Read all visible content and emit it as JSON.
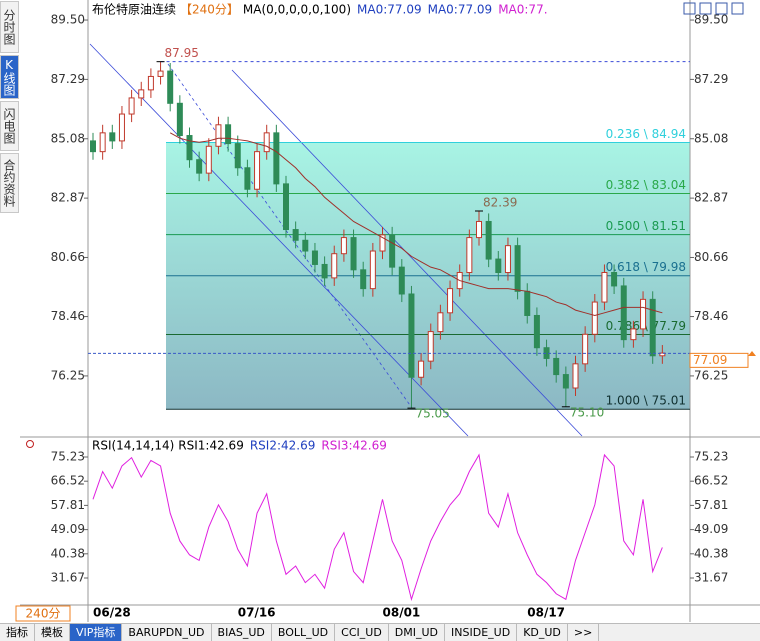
{
  "sidebar": [
    "分时图",
    "K线图",
    "闪电图",
    "合约资料"
  ],
  "toolbar": {
    "period": "240分",
    "tabs": [
      "指标",
      "模板",
      "VIP指标",
      "BARUPDN_UD",
      "BIAS_UD",
      "BOLL_UD",
      "CCI_UD",
      "DMI_UD",
      "INSIDE_UD",
      "KD_UD",
      ">>"
    ]
  },
  "chart_data": [
    {
      "type": "candlestick",
      "title": "布伦特原油连续",
      "period": "【240分】",
      "indicators": [
        {
          "text": "MA(0,0,0,0,0,100)",
          "color": "#000000"
        },
        {
          "text": "MA0:77.09",
          "color": "#1f3fbf"
        },
        {
          "text": "MA0:77.09",
          "color": "#1f3fbf"
        },
        {
          "text": "MA0:77.",
          "color": "#d020d0"
        }
      ],
      "categories": [
        "06/28",
        null,
        null,
        null,
        null,
        null,
        null,
        null,
        null,
        null,
        null,
        null,
        null,
        null,
        null,
        "07/16",
        null,
        null,
        null,
        null,
        null,
        null,
        null,
        null,
        null,
        null,
        null,
        null,
        null,
        null,
        "08/01",
        null,
        null,
        null,
        null,
        null,
        null,
        null,
        null,
        null,
        null,
        null,
        null,
        null,
        null,
        "08/17",
        null,
        null,
        null,
        null,
        null,
        null,
        null,
        null,
        null,
        null,
        null,
        null,
        null,
        null
      ],
      "open": [
        85.0,
        84.6,
        85.3,
        85.0,
        86.0,
        86.6,
        86.9,
        87.4,
        87.6,
        86.4,
        85.2,
        84.3,
        83.8,
        84.8,
        85.6,
        84.9,
        84.0,
        83.2,
        84.6,
        85.3,
        83.4,
        81.7,
        81.3,
        80.9,
        80.4,
        79.9,
        80.8,
        81.4,
        80.2,
        79.5,
        80.9,
        81.5,
        80.3,
        79.3,
        76.2,
        76.8,
        77.9,
        78.6,
        79.5,
        80.1,
        81.4,
        82.0,
        80.6,
        80.1,
        81.1,
        79.4,
        78.5,
        77.3,
        76.9,
        76.3,
        75.8,
        76.7,
        77.8,
        79.0,
        80.1,
        79.6,
        77.6,
        78.0,
        79.1,
        77.0
      ],
      "high": [
        85.3,
        85.6,
        85.6,
        86.3,
        86.9,
        87.2,
        87.7,
        87.95,
        87.9,
        86.7,
        85.5,
        84.6,
        85.1,
        85.9,
        85.9,
        85.2,
        84.3,
        84.9,
        85.6,
        85.6,
        83.7,
        82.0,
        81.6,
        81.2,
        80.7,
        81.1,
        81.7,
        81.7,
        80.5,
        81.2,
        81.8,
        81.8,
        80.6,
        79.6,
        77.1,
        78.2,
        78.9,
        79.8,
        80.4,
        81.7,
        82.39,
        82.3,
        80.9,
        81.4,
        81.4,
        79.7,
        78.8,
        77.6,
        77.2,
        76.6,
        77.0,
        78.1,
        79.3,
        80.4,
        80.4,
        79.9,
        78.3,
        79.4,
        79.4,
        77.4
      ],
      "low": [
        84.3,
        84.3,
        84.7,
        84.7,
        85.7,
        86.3,
        86.6,
        87.1,
        86.1,
        84.9,
        84.0,
        83.5,
        83.5,
        84.5,
        84.6,
        83.7,
        82.9,
        82.9,
        84.3,
        83.1,
        81.4,
        81.0,
        80.6,
        80.1,
        79.6,
        79.6,
        80.5,
        79.9,
        79.2,
        79.2,
        80.6,
        80.0,
        79.0,
        75.05,
        75.9,
        76.5,
        77.6,
        78.3,
        79.2,
        79.8,
        81.1,
        80.3,
        79.8,
        79.8,
        79.1,
        78.2,
        77.0,
        76.6,
        76.0,
        75.1,
        75.5,
        76.4,
        77.5,
        78.7,
        79.3,
        77.3,
        77.3,
        77.7,
        76.7,
        76.7
      ],
      "close": [
        84.6,
        85.3,
        85.0,
        86.0,
        86.6,
        86.9,
        87.4,
        87.6,
        86.4,
        85.2,
        84.3,
        83.8,
        84.8,
        85.6,
        84.9,
        84.0,
        83.2,
        84.6,
        85.3,
        83.4,
        81.7,
        81.3,
        80.9,
        80.4,
        79.9,
        80.8,
        81.4,
        80.2,
        79.5,
        80.9,
        81.5,
        80.3,
        79.3,
        76.2,
        76.8,
        77.9,
        78.6,
        79.5,
        80.1,
        81.4,
        82.0,
        80.6,
        80.1,
        81.1,
        79.4,
        78.5,
        77.3,
        76.9,
        76.3,
        75.8,
        76.7,
        77.8,
        79.0,
        80.1,
        79.6,
        77.6,
        78.0,
        79.1,
        77.0,
        77.1
      ],
      "up_color": "#c0392b",
      "down_color": "#2e8b57",
      "ma": {
        "color": "#a0302a",
        "values": [
          null,
          null,
          null,
          null,
          null,
          null,
          null,
          null,
          85.3,
          85.1,
          85.0,
          84.95,
          85.0,
          85.1,
          85.1,
          85.05,
          85.0,
          84.9,
          84.8,
          84.6,
          84.3,
          84.0,
          83.6,
          83.3,
          82.9,
          82.6,
          82.3,
          82.0,
          81.8,
          81.6,
          81.4,
          81.2,
          81.0,
          80.7,
          80.5,
          80.3,
          80.2,
          80.0,
          79.8,
          79.7,
          79.6,
          79.5,
          79.5,
          79.5,
          79.45,
          79.4,
          79.3,
          79.2,
          79.0,
          78.9,
          78.7,
          78.6,
          78.5,
          78.6,
          78.7,
          78.8,
          78.8,
          78.8,
          78.7,
          78.6
        ]
      },
      "ylim": [
        74.05,
        90.06
      ],
      "yticks": [
        {
          "value": 89.5,
          "label": "89.50"
        },
        87.29,
        85.08,
        82.87,
        80.66,
        78.46,
        76.25
      ],
      "fib_levels": [
        {
          "label": "0.236 \\ 84.94",
          "value": 84.94,
          "color": "#30d0dc"
        },
        {
          "label": "0.382 \\ 83.04",
          "value": 83.04,
          "color": "#2aa84a"
        },
        {
          "label": "0.500 \\ 81.51",
          "value": 81.51,
          "color": "#1a9a50"
        },
        {
          "label": "0.618 \\ 79.98",
          "value": 79.98,
          "color": "#1a7090"
        },
        {
          "label": "0.786 \\ 77.79",
          "value": 77.79,
          "color": "#1a6a30"
        },
        {
          "label": "1.000 \\ 75.01",
          "value": 75.01,
          "color": "#103030"
        }
      ],
      "annotations": [
        87.95,
        82.39,
        75.05,
        {
          "value": 75.1,
          "label": "75.10"
        }
      ],
      "last": 77.09
    },
    {
      "type": "line",
      "title": "RSI(14,14,14)",
      "indicators": [
        {
          "text": "RSI1:42.69",
          "color": "#000000"
        },
        {
          "text": "RSI2:42.69",
          "color": "#1f3fbf"
        },
        {
          "text": "RSI3:42.69",
          "color": "#d020d0"
        }
      ],
      "values": [
        60,
        70,
        64,
        72,
        75,
        68,
        74,
        72,
        55,
        45,
        40,
        38,
        50,
        58,
        52,
        42,
        36,
        55,
        62,
        45,
        33,
        36,
        30,
        33,
        28,
        42,
        48,
        34,
        30,
        45,
        60,
        45,
        38,
        24,
        35,
        45,
        52,
        58,
        62,
        70,
        76,
        55,
        50,
        62,
        48,
        40,
        33,
        30,
        26,
        24,
        38,
        48,
        58,
        76,
        72,
        45,
        40,
        60,
        34,
        42.69
      ],
      "color": "#e020e0",
      "ylim": [
        21.95,
        81.35
      ],
      "yticks": [
        75.23,
        66.52,
        57.81,
        49.09,
        40.38,
        31.67
      ]
    }
  ]
}
